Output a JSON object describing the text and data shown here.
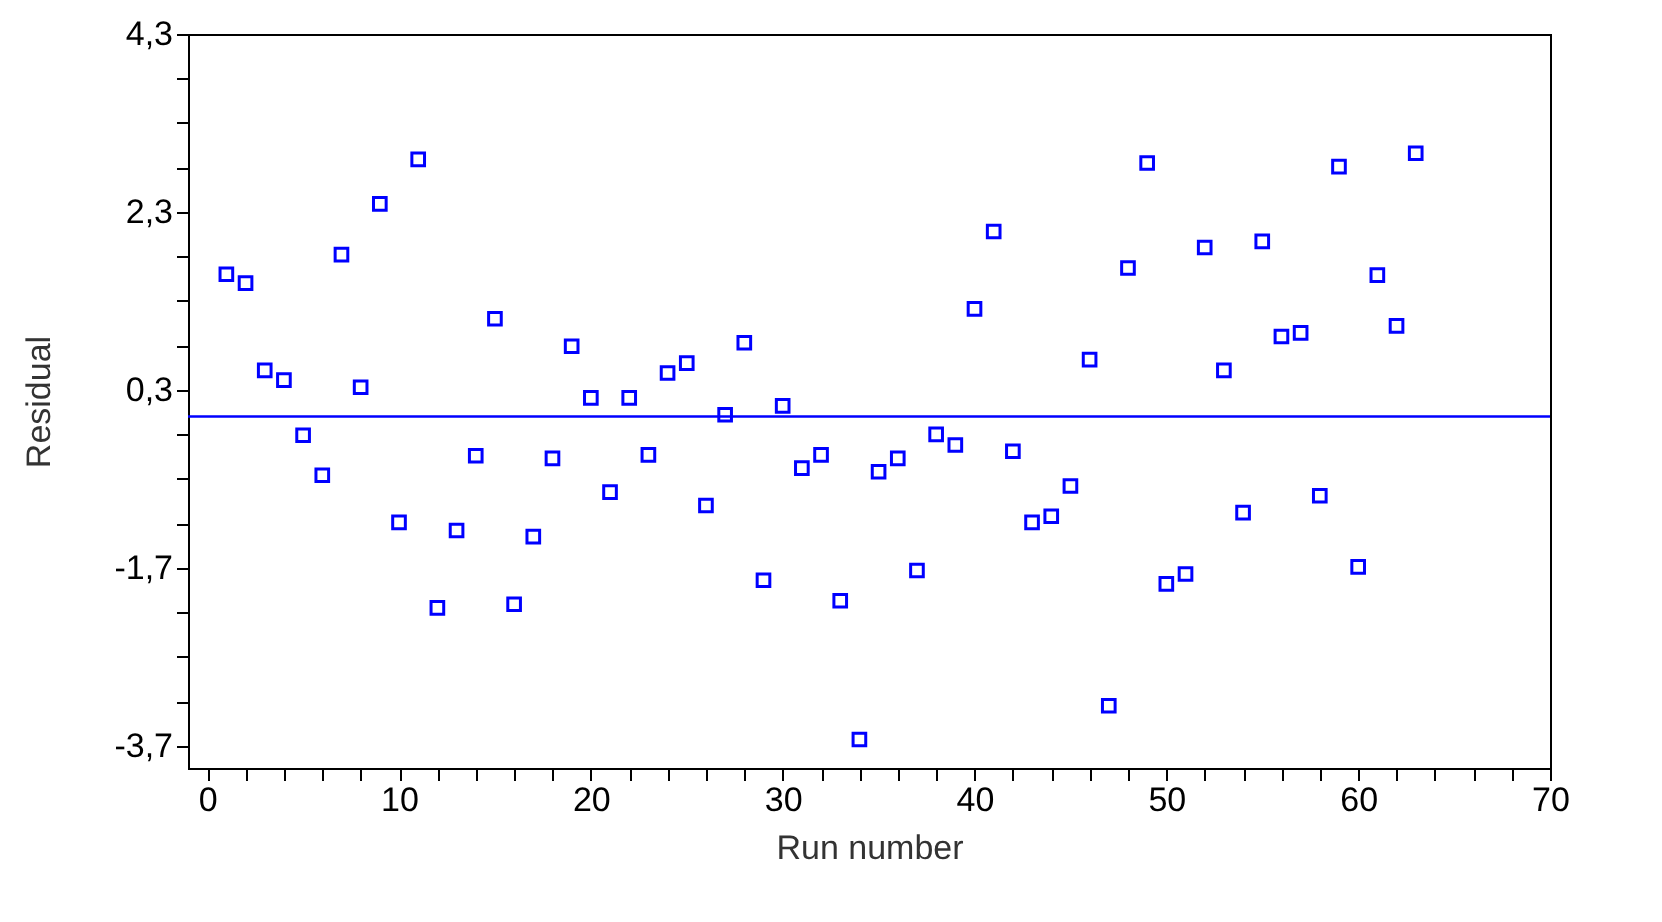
{
  "chart_data": {
    "type": "scatter",
    "xlabel": "Run number",
    "ylabel": "Residual",
    "x": [
      1,
      2,
      3,
      4,
      5,
      6,
      7,
      8,
      9,
      10,
      11,
      12,
      13,
      14,
      15,
      16,
      17,
      18,
      19,
      20,
      21,
      22,
      23,
      24,
      25,
      26,
      27,
      28,
      29,
      30,
      31,
      32,
      33,
      34,
      35,
      36,
      37,
      38,
      39,
      40,
      41,
      42,
      43,
      44,
      45,
      46,
      47,
      48,
      49,
      50,
      51,
      52,
      53,
      54,
      55,
      56,
      57,
      58,
      59,
      60,
      61,
      62,
      63
    ],
    "series": [
      {
        "color": "#0000ff",
        "values": [
          1.6,
          1.5,
          0.52,
          0.41,
          -0.21,
          -0.66,
          1.82,
          0.33,
          2.39,
          -1.19,
          2.89,
          -2.15,
          -1.28,
          -0.44,
          1.1,
          -2.11,
          -1.35,
          -0.47,
          0.79,
          0.21,
          -0.85,
          0.21,
          -0.43,
          0.49,
          0.6,
          -1.0,
          0.02,
          0.83,
          -1.84,
          0.12,
          -0.58,
          -0.43,
          -2.07,
          -3.63,
          -0.62,
          -0.47,
          -1.73,
          -0.2,
          -0.32,
          1.21,
          2.08,
          -0.39,
          -1.19,
          -1.12,
          -0.78,
          0.64,
          -3.25,
          1.67,
          2.85,
          -1.88,
          -1.77,
          1.9,
          0.52,
          -1.08,
          1.97,
          0.9,
          0.94,
          -0.89,
          2.81,
          -1.69,
          1.59,
          1.02,
          2.96
        ]
      }
    ],
    "marker": "square",
    "grid": false,
    "xlim": [
      -1,
      70
    ],
    "ylim": [
      -3.95,
      4.3
    ],
    "xticks": [
      0,
      {
        "value": 2,
        "label": null
      },
      {
        "value": 4,
        "label": null
      },
      {
        "value": 6,
        "label": null
      },
      {
        "value": 8,
        "label": null
      },
      10,
      {
        "value": 12,
        "label": null
      },
      {
        "value": 14,
        "label": null
      },
      {
        "value": 16,
        "label": null
      },
      {
        "value": 18,
        "label": null
      },
      20,
      {
        "value": 22,
        "label": null
      },
      {
        "value": 24,
        "label": null
      },
      {
        "value": 26,
        "label": null
      },
      {
        "value": 28,
        "label": null
      },
      30,
      {
        "value": 32,
        "label": null
      },
      {
        "value": 34,
        "label": null
      },
      {
        "value": 36,
        "label": null
      },
      {
        "value": 38,
        "label": null
      },
      40,
      {
        "value": 42,
        "label": null
      },
      {
        "value": 44,
        "label": null
      },
      {
        "value": 46,
        "label": null
      },
      {
        "value": 48,
        "label": null
      },
      50,
      {
        "value": 52,
        "label": null
      },
      {
        "value": 54,
        "label": null
      },
      {
        "value": 56,
        "label": null
      },
      {
        "value": 58,
        "label": null
      },
      60,
      {
        "value": 62,
        "label": null
      },
      {
        "value": 64,
        "label": null
      },
      {
        "value": 66,
        "label": null
      },
      {
        "value": 68,
        "label": null
      },
      70
    ],
    "yticks": [
      {
        "value": -3.7,
        "label": "-3,7"
      },
      {
        "value": -3.2,
        "label": null
      },
      {
        "value": -2.7,
        "label": null
      },
      {
        "value": -2.2,
        "label": null
      },
      {
        "value": -1.7,
        "label": "-1,7"
      },
      {
        "value": -1.2,
        "label": null
      },
      {
        "value": -0.7,
        "label": null
      },
      {
        "value": -0.2,
        "label": null
      },
      {
        "value": 0.3,
        "label": "0,3"
      },
      {
        "value": 0.8,
        "label": null
      },
      {
        "value": 1.3,
        "label": null
      },
      {
        "value": 1.8,
        "label": null
      },
      {
        "value": 2.3,
        "label": "2,3"
      },
      {
        "value": 2.8,
        "label": null
      },
      {
        "value": 3.3,
        "label": null
      },
      {
        "value": 3.8,
        "label": null
      },
      {
        "value": 4.3,
        "label": "4,3"
      }
    ],
    "ref_lines": [
      {
        "axis": "y",
        "value": 0,
        "color": "#0000ff"
      }
    ]
  }
}
